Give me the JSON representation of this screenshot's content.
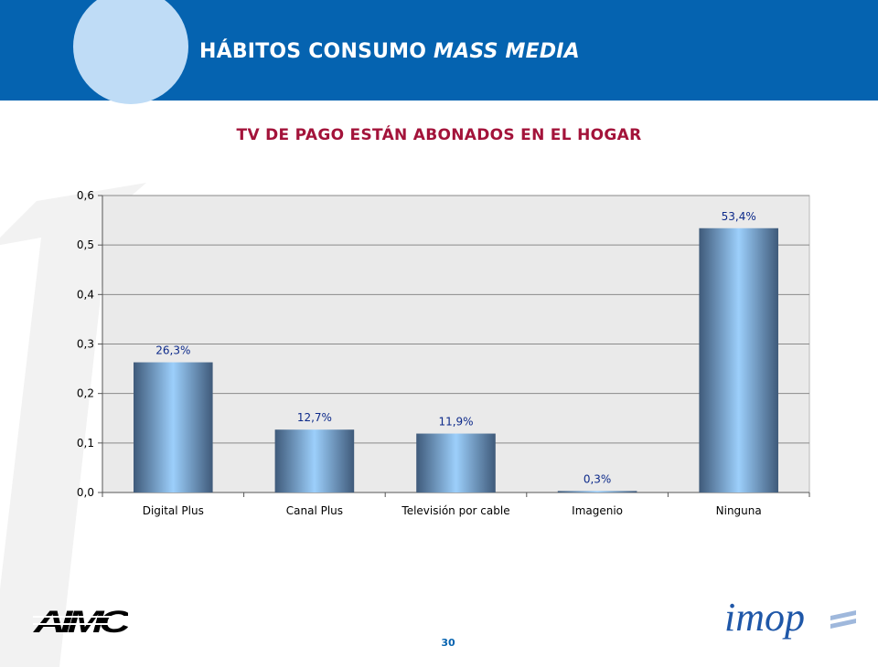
{
  "header": {
    "title_main": "HÁBITOS CONSUMO",
    "title_italic": "MASS MEDIA",
    "band_color": "#0563b0",
    "circle_color": "#bfdcf6"
  },
  "chart_data": {
    "type": "bar",
    "title": "TV DE PAGO ESTÁN ABONADOS EN EL HOGAR",
    "categories": [
      "Digital Plus",
      "Canal Plus",
      "Televisión por cable",
      "Imagenio",
      "Ninguna"
    ],
    "values": [
      0.263,
      0.127,
      0.119,
      0.003,
      0.534
    ],
    "data_labels": [
      "26,3%",
      "12,7%",
      "11,9%",
      "0,3%",
      "53,4%"
    ],
    "ylim": [
      0,
      0.6
    ],
    "yticks": [
      0,
      0.1,
      0.2,
      0.3,
      0.4,
      0.5,
      0.6
    ],
    "ytick_labels": [
      "0,0",
      "0,1",
      "0,2",
      "0,3",
      "0,4",
      "0,5",
      "0,6"
    ],
    "xlabel": "",
    "ylabel": "",
    "grid": true,
    "legend": "none",
    "title_color": "#a3133a",
    "bar_color_edge": "#3f5a7a",
    "bar_color_center": "#9ccffb",
    "label_color": "#0d2a8a"
  },
  "footer": {
    "page_number": "30",
    "left_logo": "AIMC",
    "right_logo": "imop"
  }
}
